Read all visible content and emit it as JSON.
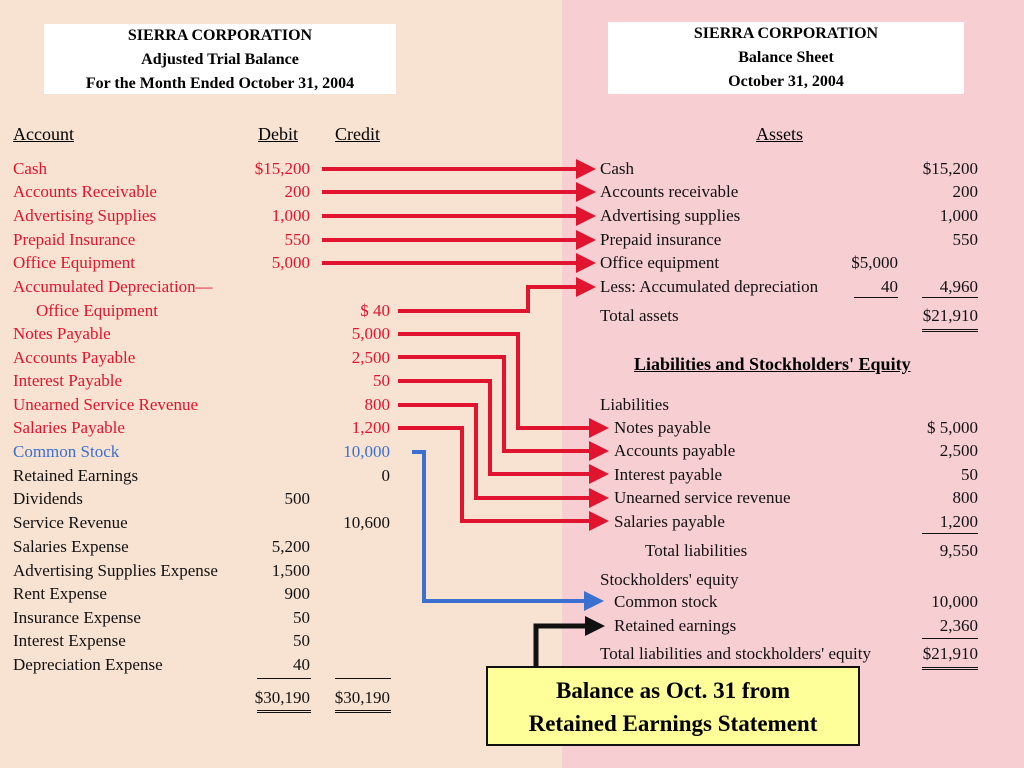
{
  "trial_balance": {
    "title_lines": [
      "SIERRA  CORPORATION",
      "Adjusted Trial Balance",
      "For the Month Ended October 31, 2004"
    ],
    "headers": {
      "account": "Account",
      "debit": "Debit",
      "credit": "Credit"
    },
    "rows": [
      {
        "account": "Cash",
        "debit": "$15,200",
        "credit": "",
        "color": "red"
      },
      {
        "account": "Accounts Receivable",
        "debit": "200",
        "credit": "",
        "color": "red"
      },
      {
        "account": "Advertising Supplies",
        "debit": "1,000",
        "credit": "",
        "color": "red"
      },
      {
        "account": "Prepaid Insurance",
        "debit": "550",
        "credit": "",
        "color": "red"
      },
      {
        "account": "Office Equipment",
        "debit": "5,000",
        "credit": "",
        "color": "red"
      },
      {
        "account": "Accumulated Depreciation—",
        "debit": "",
        "credit": "",
        "color": "red"
      },
      {
        "account": "Office Equipment",
        "debit": "",
        "credit": "$     40",
        "color": "red",
        "indent": true
      },
      {
        "account": "Notes Payable",
        "debit": "",
        "credit": "5,000",
        "color": "red"
      },
      {
        "account": "Accounts Payable",
        "debit": "",
        "credit": "2,500",
        "color": "red"
      },
      {
        "account": "Interest Payable",
        "debit": "",
        "credit": "50",
        "color": "red"
      },
      {
        "account": "Unearned Service Revenue",
        "debit": "",
        "credit": "800",
        "color": "red"
      },
      {
        "account": "Salaries Payable",
        "debit": "",
        "credit": "1,200",
        "color": "red"
      },
      {
        "account": "Common Stock",
        "debit": "",
        "credit": "10,000",
        "color": "blue"
      },
      {
        "account": "Retained Earnings",
        "debit": "",
        "credit": "0",
        "color": "black"
      },
      {
        "account": "Dividends",
        "debit": "500",
        "credit": "",
        "color": "black"
      },
      {
        "account": "Service Revenue",
        "debit": "",
        "credit": "10,600",
        "color": "black"
      },
      {
        "account": "Salaries Expense",
        "debit": "5,200",
        "credit": "",
        "color": "black"
      },
      {
        "account": "Advertising Supplies Expense",
        "debit": "1,500",
        "credit": "",
        "color": "black"
      },
      {
        "account": "Rent Expense",
        "debit": "900",
        "credit": "",
        "color": "black"
      },
      {
        "account": "Insurance Expense",
        "debit": "50",
        "credit": "",
        "color": "black"
      },
      {
        "account": "Interest Expense",
        "debit": "50",
        "credit": "",
        "color": "black"
      },
      {
        "account": "Depreciation Expense",
        "debit": "40",
        "credit": "",
        "color": "black"
      }
    ],
    "totals": {
      "debit": "$30,190",
      "credit": "$30,190"
    }
  },
  "balance_sheet": {
    "title_lines": [
      "SIERRA  CORPORATION",
      "Balance Sheet",
      "October 31, 2004"
    ],
    "assets_header": "Assets",
    "assets": [
      {
        "label": "Cash",
        "inner": "",
        "amount": "$15,200"
      },
      {
        "label": "Accounts receivable",
        "inner": "",
        "amount": "200"
      },
      {
        "label": "Advertising supplies",
        "inner": "",
        "amount": "1,000"
      },
      {
        "label": "Prepaid insurance",
        "inner": "",
        "amount": "550"
      },
      {
        "label": "Office equipment",
        "inner": "$5,000",
        "amount": ""
      },
      {
        "label": "Less: Accumulated depreciation",
        "inner": "40",
        "amount": "4,960"
      }
    ],
    "total_assets": {
      "label": "Total assets",
      "amount": "$21,910"
    },
    "le_header": "Liabilities and Stockholders' Equity",
    "liabilities_label": "Liabilities",
    "liabilities": [
      {
        "label": "Notes payable",
        "amount": "$  5,000"
      },
      {
        "label": "Accounts payable",
        "amount": "2,500"
      },
      {
        "label": "Interest payable",
        "amount": "50"
      },
      {
        "label": "Unearned service revenue",
        "amount": "800"
      },
      {
        "label": "Salaries payable",
        "amount": "1,200"
      }
    ],
    "total_liabilities": {
      "label": "Total liabilities",
      "amount": "9,550"
    },
    "equity_label": "Stockholders' equity",
    "equity": [
      {
        "label": "Common stock",
        "amount": "10,000"
      },
      {
        "label": "Retained earnings",
        "amount": "2,360"
      }
    ],
    "total_le": {
      "label": "Total liabilities and stockholders' equity",
      "amount": "$21,910"
    }
  },
  "callout": {
    "lines": [
      "Balance as Oct. 31 from",
      "Retained Earnings Statement"
    ]
  },
  "colors": {
    "left_bg": "#f8e3d2",
    "right_bg": "#f7cfd3",
    "red": "#e0142e",
    "blue": "#3b6fd0",
    "callout_bg": "#ffff99"
  }
}
